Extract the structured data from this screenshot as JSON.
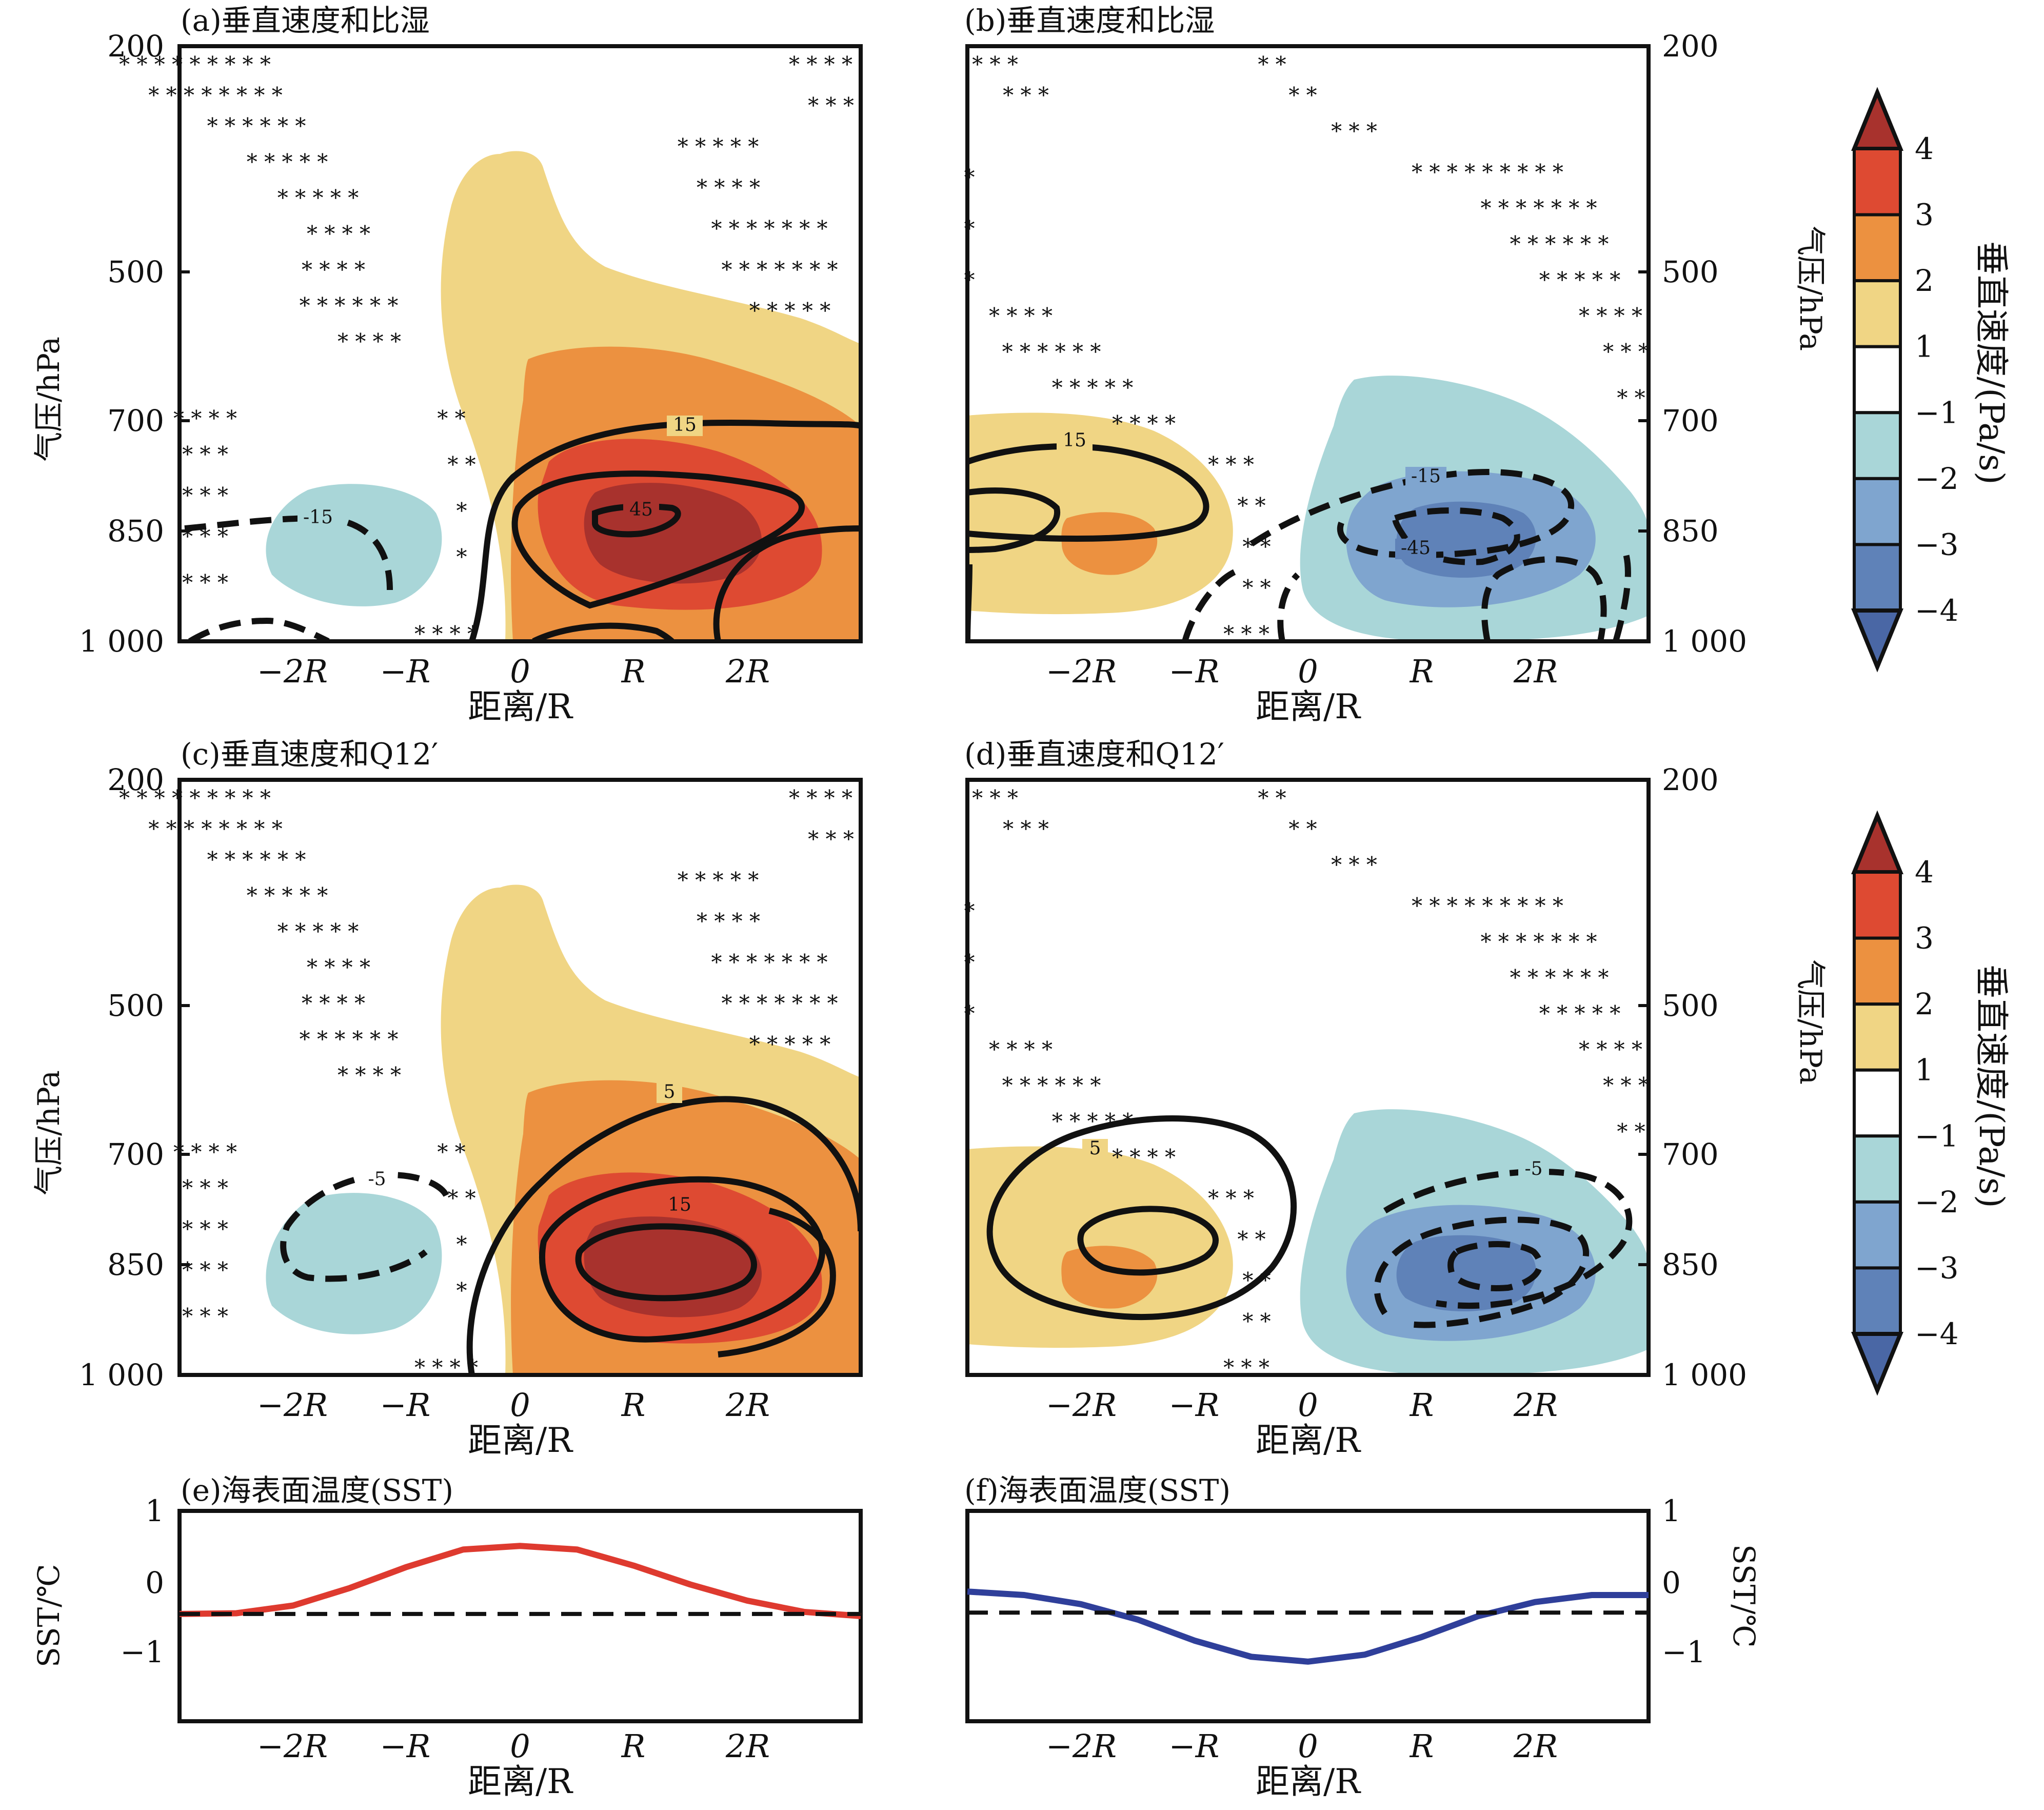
{
  "figure": {
    "x_axis_label": "距离/R",
    "y_axis_label": "气压/hPa",
    "sst_axis_label": "SST/℃",
    "colorbar_label": "垂直速度/(Pa/s)",
    "colorbar_ticks": [
      "4",
      "3",
      "2",
      "1",
      "−1",
      "−2",
      "−3",
      "−4"
    ],
    "colorbar_colors": [
      "#a8322d",
      "#de4a32",
      "#ec9140",
      "#f0d584",
      "#ffffff",
      "#a9d6d8",
      "#7fa5cf",
      "#5f82b8",
      "#4a67a5"
    ],
    "x_tick_labels": [
      "−2R",
      "−R",
      "0",
      "R",
      "2R"
    ],
    "y_tick_labels": [
      "200",
      "500",
      "700",
      "850",
      "1 000"
    ],
    "sst_tick_labels": [
      "1",
      "0",
      "−1"
    ]
  },
  "chart_data": [
    {
      "type": "heatmap",
      "panel": "a",
      "title": "(a)垂直速度和比湿",
      "x": [
        -3,
        -2,
        -1,
        0,
        1,
        2,
        3
      ],
      "ylim_hPa": [
        1000,
        200
      ],
      "field": "vertical velocity (Pa/s)",
      "extremum": "positive, core ≈4 near x=R, 850 hPa",
      "contours": {
        "style": "solid positive / dashed negative",
        "labels": [
          "15",
          "45",
          "-15"
        ]
      },
      "significance_markers": "*"
    },
    {
      "type": "heatmap",
      "panel": "b",
      "title": "(b)垂直速度和比湿",
      "x": [
        -3,
        -2,
        -1,
        0,
        1,
        2,
        3
      ],
      "ylim_hPa": [
        1000,
        200
      ],
      "field": "vertical velocity (Pa/s)",
      "extremum": "negative, core ≈-3 near x=1.5R, 850 hPa",
      "contours": {
        "style": "solid positive / dashed negative",
        "labels": [
          "15",
          "-15",
          "-45"
        ]
      },
      "significance_markers": "*"
    },
    {
      "type": "heatmap",
      "panel": "c",
      "title": "(c)垂直速度和Q12′",
      "x": [
        -3,
        -2,
        -1,
        0,
        1,
        2,
        3
      ],
      "ylim_hPa": [
        1000,
        200
      ],
      "field": "vertical velocity (Pa/s)",
      "extremum": "positive, core ≈4 near x=R, 850 hPa",
      "contours": {
        "style": "solid positive / dashed negative",
        "labels": [
          "5",
          "15",
          "-5"
        ]
      },
      "significance_markers": "*"
    },
    {
      "type": "heatmap",
      "panel": "d",
      "title": "(d)垂直速度和Q12′",
      "x": [
        -3,
        -2,
        -1,
        0,
        1,
        2,
        3
      ],
      "ylim_hPa": [
        1000,
        200
      ],
      "field": "vertical velocity (Pa/s)",
      "extremum": "negative, core ≈-3 near x=1.5R, 850 hPa",
      "contours": {
        "style": "solid positive / dashed negative",
        "labels": [
          "5",
          "-5"
        ]
      },
      "significance_markers": "*"
    },
    {
      "type": "line",
      "panel": "e",
      "title": "(e)海表面温度(SST)",
      "x": [
        -3,
        -2.5,
        -2,
        -1.5,
        -1,
        -0.5,
        0,
        0.5,
        1,
        1.5,
        2,
        2.5,
        3
      ],
      "series": [
        {
          "color": "#de3a2f",
          "values": [
            -0.47,
            -0.46,
            -0.35,
            -0.1,
            0.2,
            0.45,
            0.5,
            0.45,
            0.22,
            -0.05,
            -0.28,
            -0.44,
            -0.5
          ]
        },
        {
          "color": "#111111",
          "style": "dashed",
          "values": [
            -0.47,
            -0.47,
            -0.47,
            -0.47,
            -0.47,
            -0.47,
            -0.47,
            -0.47,
            -0.47,
            -0.47,
            -0.47,
            -0.47,
            -0.47
          ]
        }
      ],
      "ylim": [
        -2,
        1
      ]
    },
    {
      "type": "line",
      "panel": "f",
      "title": "(f)海表面温度(SST)",
      "x": [
        -3,
        -2.5,
        -2,
        -1.5,
        -1,
        -0.5,
        0,
        0.5,
        1,
        1.5,
        2,
        2.5,
        3
      ],
      "series": [
        {
          "color": "#2f3f9a",
          "values": [
            -0.15,
            -0.2,
            -0.33,
            -0.55,
            -0.85,
            -1.08,
            -1.15,
            -1.05,
            -0.8,
            -0.5,
            -0.3,
            -0.2,
            -0.2
          ]
        },
        {
          "color": "#111111",
          "style": "dashed",
          "values": [
            -0.45,
            -0.45,
            -0.45,
            -0.45,
            -0.45,
            -0.45,
            -0.45,
            -0.45,
            -0.45,
            -0.45,
            -0.45,
            -0.45,
            -0.45
          ]
        }
      ],
      "ylim": [
        -2,
        1
      ]
    }
  ]
}
